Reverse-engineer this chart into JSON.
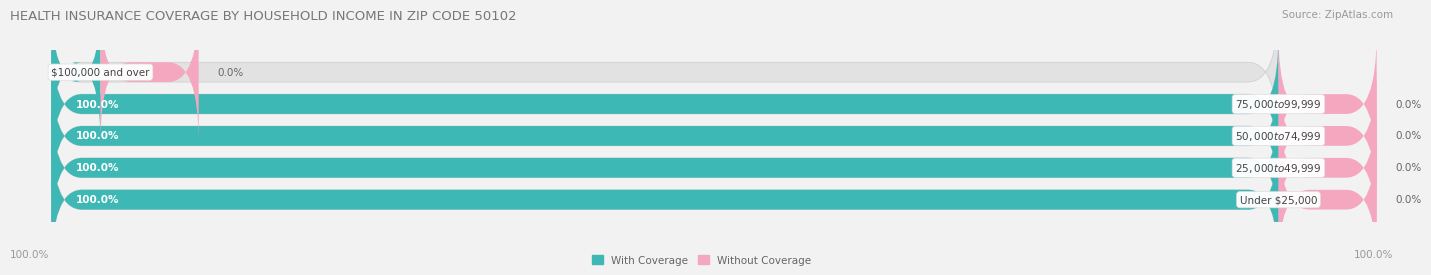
{
  "title": "HEALTH INSURANCE COVERAGE BY HOUSEHOLD INCOME IN ZIP CODE 50102",
  "source": "Source: ZipAtlas.com",
  "categories": [
    "Under $25,000",
    "$25,000 to $49,999",
    "$50,000 to $74,999",
    "$75,000 to $99,999",
    "$100,000 and over"
  ],
  "with_coverage": [
    100.0,
    100.0,
    100.0,
    100.0,
    0.0
  ],
  "without_coverage": [
    0.0,
    0.0,
    0.0,
    0.0,
    0.0
  ],
  "color_with": "#3db8b4",
  "color_without": "#f4a7be",
  "background_color": "#f2f2f2",
  "bar_bg_color": "#e2e2e2",
  "bar_height": 0.62,
  "total_width": 100.0,
  "legend_with": "With Coverage",
  "legend_without": "Without Coverage",
  "title_fontsize": 9.5,
  "source_fontsize": 7.5,
  "label_fontsize": 7.5,
  "cat_fontsize": 7.5,
  "tick_fontsize": 7.5
}
